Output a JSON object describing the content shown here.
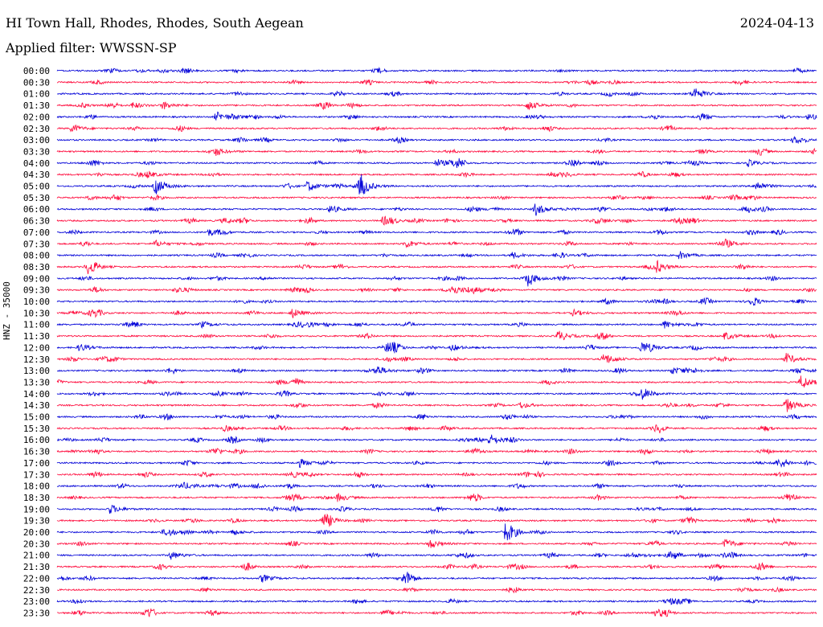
{
  "header": {
    "station": "HI Town Hall, Rhodes, Rhodes, South Aegean",
    "date": "2024-04-13",
    "filter": "Applied filter: WWSSN-SP"
  },
  "colors": {
    "even_trace": "#0000d8",
    "odd_trace": "#ff0a3c",
    "text": "#000000"
  },
  "chart_data": {
    "type": "line",
    "title": "HI Town Hall, Rhodes, Rhodes, South Aegean",
    "subtitle": "Applied filter: WWSSN-SP",
    "ylabel": "HNZ - 35000",
    "xlabel": "",
    "grid": false,
    "row_labels": [
      "00:00",
      "00:30",
      "01:00",
      "01:30",
      "02:00",
      "02:30",
      "03:00",
      "03:30",
      "04:00",
      "04:30",
      "05:00",
      "05:30",
      "06:00",
      "06:30",
      "07:00",
      "07:30",
      "08:00",
      "08:30",
      "09:00",
      "09:30",
      "10:00",
      "10:30",
      "11:00",
      "11:30",
      "12:00",
      "12:30",
      "13:00",
      "13:30",
      "14:00",
      "14:30",
      "15:00",
      "15:30",
      "16:00",
      "16:30",
      "17:00",
      "17:30",
      "18:00",
      "18:30",
      "19:00",
      "19:30",
      "20:00",
      "20:30",
      "21:00",
      "21:30",
      "22:00",
      "22:30",
      "23:00",
      "23:30"
    ],
    "series_colors": [
      "#0000d8",
      "#ff0a3c"
    ],
    "events": [
      {
        "row": 2,
        "pos": 0.84,
        "amp": 6
      },
      {
        "row": 3,
        "pos": 0.1,
        "amp": 4
      },
      {
        "row": 3,
        "pos": 0.14,
        "amp": 5
      },
      {
        "row": 3,
        "pos": 0.62,
        "amp": 6
      },
      {
        "row": 4,
        "pos": 0.21,
        "amp": 6
      },
      {
        "row": 4,
        "pos": 0.99,
        "amp": 4
      },
      {
        "row": 5,
        "pos": 0.02,
        "amp": 5
      },
      {
        "row": 6,
        "pos": 0.97,
        "amp": 4
      },
      {
        "row": 7,
        "pos": 0.21,
        "amp": 4
      },
      {
        "row": 8,
        "pos": 0.5,
        "amp": 5
      },
      {
        "row": 8,
        "pos": 0.91,
        "amp": 4
      },
      {
        "row": 9,
        "pos": 0.12,
        "amp": 4
      },
      {
        "row": 9,
        "pos": 0.65,
        "amp": 3
      },
      {
        "row": 10,
        "pos": 0.13,
        "amp": 10
      },
      {
        "row": 10,
        "pos": 0.33,
        "amp": 7
      },
      {
        "row": 10,
        "pos": 0.4,
        "amp": 11
      },
      {
        "row": 10,
        "pos": 0.92,
        "amp": 7
      },
      {
        "row": 11,
        "pos": 0.04,
        "amp": 3
      },
      {
        "row": 12,
        "pos": 0.36,
        "amp": 5
      },
      {
        "row": 12,
        "pos": 0.63,
        "amp": 8
      },
      {
        "row": 13,
        "pos": 0.43,
        "amp": 5
      },
      {
        "row": 14,
        "pos": 0.2,
        "amp": 4
      },
      {
        "row": 15,
        "pos": 0.13,
        "amp": 4
      },
      {
        "row": 15,
        "pos": 0.46,
        "amp": 5
      },
      {
        "row": 15,
        "pos": 0.88,
        "amp": 5
      },
      {
        "row": 16,
        "pos": 0.6,
        "amp": 4
      },
      {
        "row": 16,
        "pos": 0.82,
        "amp": 5
      },
      {
        "row": 17,
        "pos": 0.04,
        "amp": 7
      },
      {
        "row": 17,
        "pos": 0.79,
        "amp": 7
      },
      {
        "row": 18,
        "pos": 0.62,
        "amp": 7
      },
      {
        "row": 19,
        "pos": 0.52,
        "amp": 6
      },
      {
        "row": 21,
        "pos": 0.31,
        "amp": 6
      },
      {
        "row": 21,
        "pos": 0.68,
        "amp": 4
      },
      {
        "row": 22,
        "pos": 0.19,
        "amp": 4
      },
      {
        "row": 22,
        "pos": 0.8,
        "amp": 5
      },
      {
        "row": 23,
        "pos": 0.66,
        "amp": 7
      },
      {
        "row": 23,
        "pos": 0.88,
        "amp": 5
      },
      {
        "row": 24,
        "pos": 0.03,
        "amp": 5
      },
      {
        "row": 24,
        "pos": 0.52,
        "amp": 4
      },
      {
        "row": 24,
        "pos": 0.77,
        "amp": 8
      },
      {
        "row": 25,
        "pos": 0.72,
        "amp": 8
      },
      {
        "row": 25,
        "pos": 0.96,
        "amp": 7
      },
      {
        "row": 26,
        "pos": 0.42,
        "amp": 7
      },
      {
        "row": 26,
        "pos": 0.81,
        "amp": 4
      },
      {
        "row": 27,
        "pos": 0.98,
        "amp": 9
      },
      {
        "row": 28,
        "pos": 0.77,
        "amp": 5
      },
      {
        "row": 29,
        "pos": 0.96,
        "amp": 9
      },
      {
        "row": 29,
        "pos": 0.61,
        "amp": 4
      },
      {
        "row": 31,
        "pos": 0.22,
        "amp": 4
      },
      {
        "row": 32,
        "pos": 0.57,
        "amp": 7
      },
      {
        "row": 34,
        "pos": 0.32,
        "amp": 5
      },
      {
        "row": 37,
        "pos": 0.37,
        "amp": 5
      },
      {
        "row": 38,
        "pos": 0.07,
        "amp": 6
      },
      {
        "row": 39,
        "pos": 0.35,
        "amp": 7
      },
      {
        "row": 40,
        "pos": 0.23,
        "amp": 4
      },
      {
        "row": 40,
        "pos": 0.59,
        "amp": 11
      },
      {
        "row": 41,
        "pos": 0.49,
        "amp": 6
      },
      {
        "row": 41,
        "pos": 0.88,
        "amp": 6
      },
      {
        "row": 42,
        "pos": 0.15,
        "amp": 5
      },
      {
        "row": 44,
        "pos": 0.27,
        "amp": 5
      }
    ]
  }
}
